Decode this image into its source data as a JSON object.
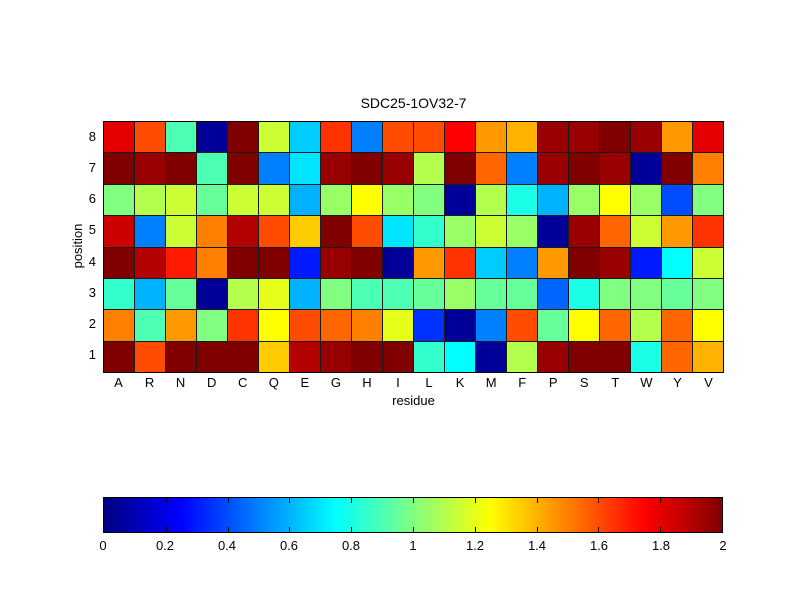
{
  "chart_data": {
    "type": "heatmap",
    "title": "SDC25-1OV32-7",
    "xlabel": "residue",
    "ylabel": "position",
    "x_categories": [
      "A",
      "R",
      "N",
      "D",
      "C",
      "Q",
      "E",
      "G",
      "H",
      "I",
      "L",
      "K",
      "M",
      "F",
      "P",
      "S",
      "T",
      "W",
      "Y",
      "V"
    ],
    "y_categories_top_to_bottom": [
      "8",
      "7",
      "6",
      "5",
      "4",
      "3",
      "2",
      "1"
    ],
    "values_rows_top_to_bottom": [
      [
        1.8,
        1.6,
        0.9,
        0.05,
        2.0,
        1.15,
        0.65,
        1.65,
        0.5,
        1.6,
        1.6,
        1.75,
        1.45,
        1.4,
        1.95,
        1.95,
        2.0,
        1.95,
        1.45,
        1.8
      ],
      [
        2.0,
        1.95,
        2.0,
        0.9,
        2.0,
        0.5,
        0.7,
        1.95,
        2.0,
        1.95,
        1.1,
        2.0,
        1.55,
        0.5,
        1.95,
        2.0,
        1.95,
        0.05,
        2.0,
        1.5
      ],
      [
        1.0,
        1.1,
        1.15,
        0.95,
        1.15,
        1.15,
        0.6,
        1.05,
        1.25,
        1.05,
        1.0,
        0.05,
        1.1,
        0.8,
        0.6,
        1.05,
        1.25,
        1.05,
        0.4,
        1.0
      ],
      [
        1.85,
        0.5,
        1.15,
        1.5,
        1.9,
        1.6,
        1.35,
        2.0,
        1.6,
        0.7,
        0.85,
        1.05,
        1.15,
        1.05,
        0.05,
        1.95,
        1.55,
        1.15,
        1.45,
        1.65
      ],
      [
        2.0,
        1.9,
        1.7,
        1.5,
        2.0,
        2.0,
        0.3,
        1.95,
        2.0,
        0.05,
        1.45,
        1.65,
        0.65,
        0.5,
        1.45,
        2.0,
        1.95,
        0.3,
        0.75,
        1.15
      ],
      [
        0.85,
        0.6,
        0.95,
        0.05,
        1.1,
        1.2,
        0.6,
        1.0,
        0.9,
        0.9,
        0.95,
        1.05,
        0.95,
        0.95,
        0.45,
        0.8,
        1.0,
        1.0,
        0.95,
        1.0
      ],
      [
        1.5,
        0.9,
        1.45,
        1.0,
        1.65,
        1.25,
        1.6,
        1.55,
        1.5,
        1.2,
        0.35,
        0.05,
        0.5,
        1.6,
        0.95,
        1.25,
        1.55,
        1.1,
        1.55,
        1.25
      ],
      [
        2.0,
        1.6,
        2.0,
        2.0,
        2.0,
        1.35,
        1.9,
        1.95,
        2.0,
        2.0,
        0.85,
        0.75,
        0.05,
        1.1,
        1.95,
        2.0,
        2.0,
        0.8,
        1.55,
        1.4
      ]
    ],
    "colorbar": {
      "colormap": "jet",
      "min": 0,
      "max": 2,
      "tick_labels": [
        "0",
        "0.2",
        "0.4",
        "0.6",
        "0.8",
        "1",
        "1.2",
        "1.4",
        "1.6",
        "1.8",
        "2"
      ]
    },
    "layout": {
      "grid": "off",
      "legend": "none",
      "colorbar_position": "bottom"
    }
  },
  "colors": {
    "background": "#ffffff",
    "text": "#000000",
    "grid_line": "#1a1a1a"
  }
}
